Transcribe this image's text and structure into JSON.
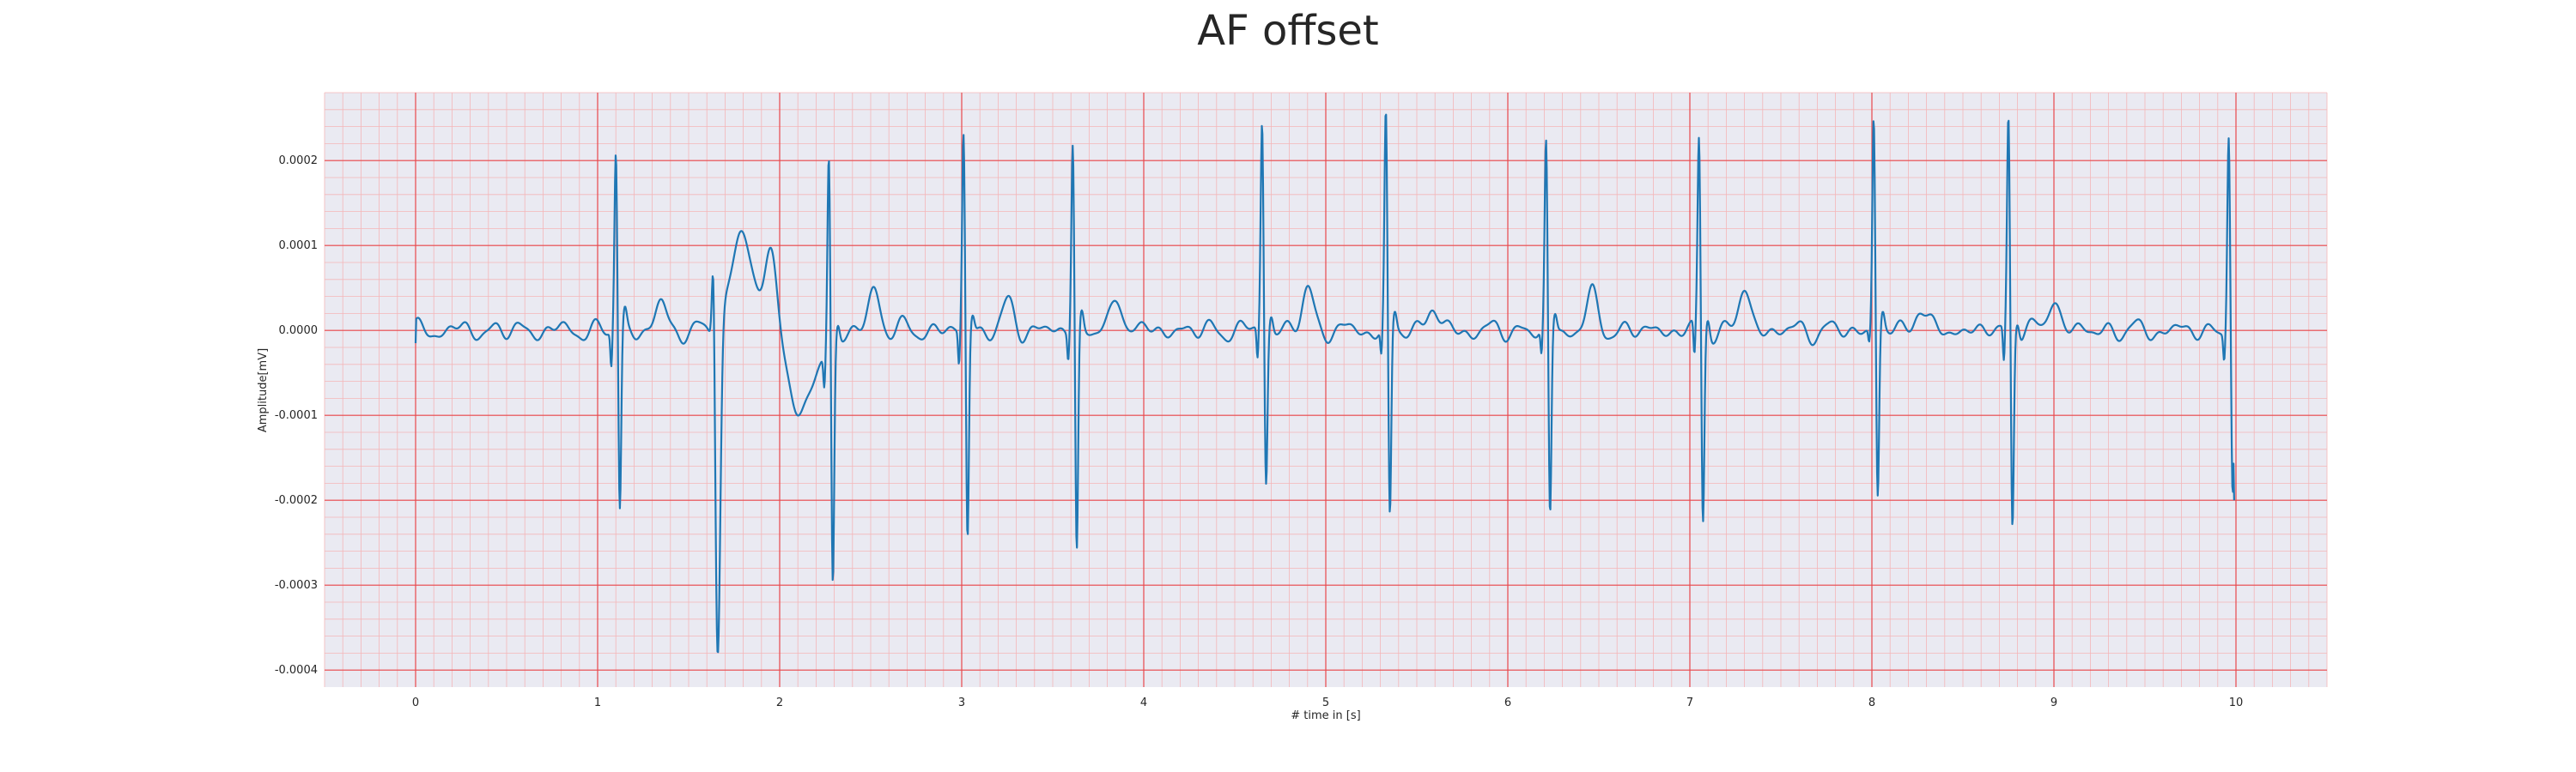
{
  "chart_data": {
    "type": "line",
    "title": "AF offset",
    "xlabel": "# time in [s]",
    "ylabel": "Amplitude[mV]",
    "xlim": [
      -0.5,
      10.5
    ],
    "ylim": [
      -0.00042,
      0.00028
    ],
    "xticks": [
      0,
      1,
      2,
      3,
      4,
      5,
      6,
      7,
      8,
      9,
      10
    ],
    "xtick_labels": [
      "0",
      "1",
      "2",
      "3",
      "4",
      "5",
      "6",
      "7",
      "8",
      "9",
      "10"
    ],
    "yticks": [
      -0.0004,
      -0.0003,
      -0.0002,
      -0.0001,
      0.0,
      0.0001,
      0.0002
    ],
    "ytick_labels": [
      "-0.0004",
      "-0.0003",
      "-0.0002",
      "-0.0001",
      "0.0000",
      "0.0001",
      "0.0002"
    ],
    "grid": true,
    "major_grid_color": "#e8484d",
    "minor_grid_color": "#f4b6b8",
    "plot_background": "#eaeaf2",
    "line_color": "#1f77b4",
    "series": [
      {
        "beats": [
          {
            "t": 1.1,
            "r": 0.000212,
            "q": -4e-05,
            "s": -0.000215
          },
          {
            "t": 1.65,
            "r": 0.00015,
            "q": -2e-05,
            "s": -0.000385,
            "ectopic": true
          },
          {
            "t": 2.27,
            "r": 0.000235,
            "q": -3.5e-05,
            "s": -0.00028
          },
          {
            "t": 3.01,
            "r": 0.000233,
            "q": -4e-05,
            "s": -0.000248
          },
          {
            "t": 3.61,
            "r": 0.000225,
            "q": -3e-05,
            "s": -0.000265
          },
          {
            "t": 4.65,
            "r": 0.00025,
            "q": -3.5e-05,
            "s": -0.000178
          },
          {
            "t": 5.33,
            "r": 0.000252,
            "q": -3e-05,
            "s": -0.000228
          },
          {
            "t": 6.21,
            "r": 0.000217,
            "q": -3e-05,
            "s": -0.000225
          },
          {
            "t": 7.05,
            "r": 0.000223,
            "q": -4e-05,
            "s": -0.00023
          },
          {
            "t": 8.01,
            "r": 0.000253,
            "q": -1.5e-05,
            "s": -0.000198
          },
          {
            "t": 8.75,
            "r": 0.000253,
            "q": -4e-05,
            "s": -0.000232
          },
          {
            "t": 9.96,
            "r": 0.000235,
            "q": -3e-05,
            "s": -0.0002
          }
        ],
        "t_start": 0.0,
        "t_end": 9.99,
        "start_value": -1.5e-05,
        "end_value": -0.0002
      }
    ]
  }
}
